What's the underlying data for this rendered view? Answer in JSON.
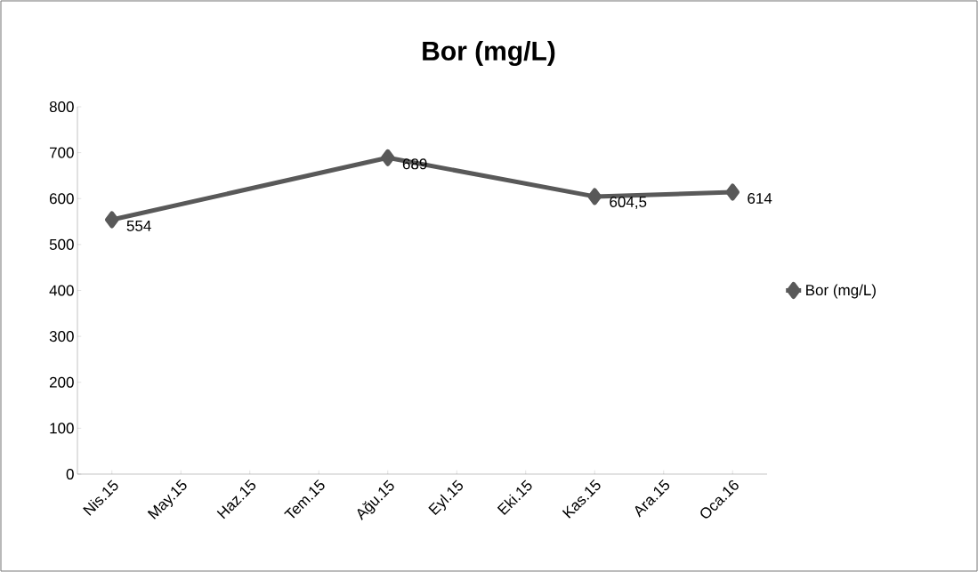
{
  "chart_data": {
    "type": "line",
    "title": "Bor (mg/L)",
    "categories": [
      "Nis.15",
      "May.15",
      "Haz.15",
      "Tem.15",
      "Ağu.15",
      "Eyl.15",
      "Eki.15",
      "Kas.15",
      "Ara.15",
      "Oca.16"
    ],
    "series": [
      {
        "name": "Bor (mg/L)",
        "color": "#595959",
        "values": [
          554,
          null,
          null,
          null,
          689,
          null,
          null,
          604.5,
          null,
          614
        ],
        "value_labels": [
          "554",
          null,
          null,
          null,
          "689",
          null,
          null,
          "604,5",
          null,
          "614"
        ]
      }
    ],
    "ylim": [
      0,
      800
    ],
    "yticks": [
      0,
      100,
      200,
      300,
      400,
      500,
      600,
      700,
      800
    ],
    "marker": "diamond",
    "line_style": "solid",
    "legend": "right",
    "grid": false
  }
}
